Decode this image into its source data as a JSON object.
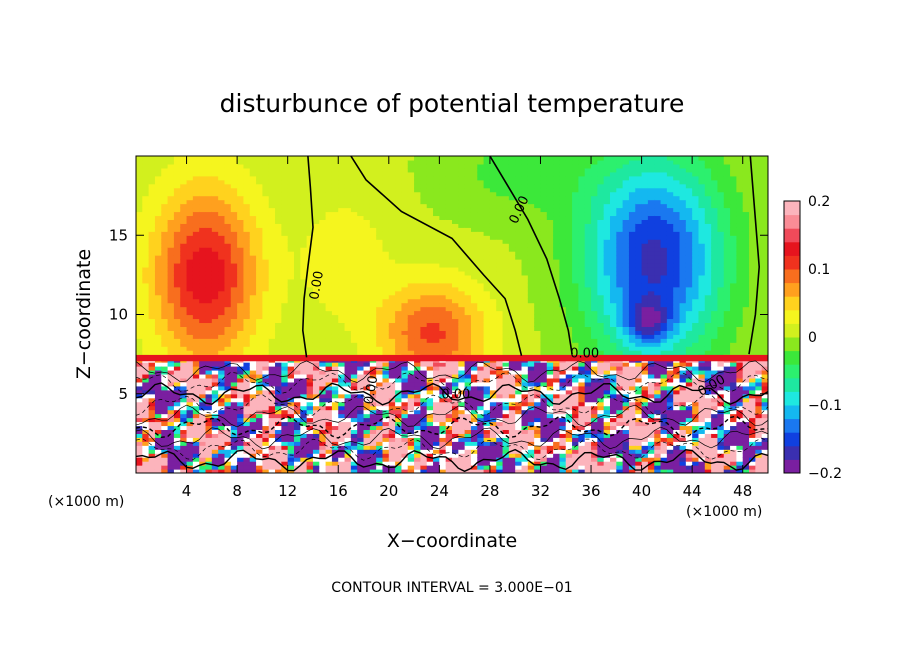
{
  "chart_data": {
    "type": "heatmap",
    "title": "disturbunce of potential temperature",
    "xlabel": "X−coordinate",
    "ylabel": "Z−coordinate",
    "x_unit_left": "(×1000 m)",
    "x_unit_right": "(×1000 m)",
    "xticks": [
      4,
      8,
      12,
      16,
      20,
      24,
      28,
      32,
      36,
      40,
      44,
      48
    ],
    "yticks": [
      5,
      10,
      15
    ],
    "xlim": [
      0,
      50
    ],
    "ylim": [
      0,
      20
    ],
    "colorbar": {
      "ticks": [
        "0.2",
        "0.1",
        "0",
        "−0.1",
        "−0.2"
      ],
      "range": [
        -0.2,
        0.2
      ]
    },
    "contour_labels": [
      "0.00",
      "0.00",
      "0.00",
      "0.00",
      "0.00",
      "0.00"
    ],
    "contour_interval_text": "CONTOUR INTERVAL = 3.000E−01",
    "features": [
      {
        "kind": "warm-anomaly",
        "x": 5,
        "z": 12,
        "value": 0.12
      },
      {
        "kind": "warm-anomaly",
        "x": 23,
        "z": 9,
        "value": 0.1
      },
      {
        "kind": "cold-anomaly",
        "x": 41,
        "z": 13,
        "value": -0.16
      },
      {
        "kind": "cold-anomaly",
        "x": 40,
        "z": 9.5,
        "value": -0.2
      }
    ],
    "colors": {
      "scale": [
        "#7a1fa0",
        "#3a2fb0",
        "#1040e0",
        "#1a78f0",
        "#14b8f0",
        "#1ee8e0",
        "#1ee8a0",
        "#2cf06e",
        "#3ce83a",
        "#8ae81e",
        "#d2f01e",
        "#f5f51e",
        "#ffd21e",
        "#ffa01e",
        "#f86e1e",
        "#f0321e",
        "#e6141e",
        "#f04a5a",
        "#fa8c96",
        "#fcb4bc"
      ]
    }
  }
}
